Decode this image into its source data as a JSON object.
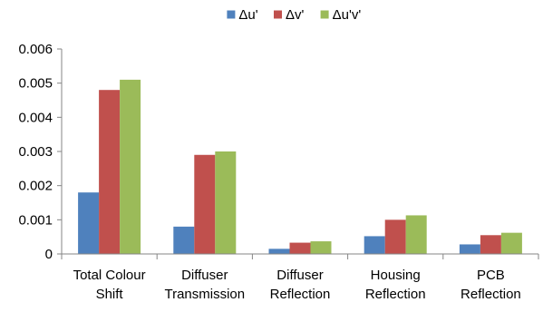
{
  "chart_data": {
    "type": "bar",
    "categories": [
      [
        "Total Colour",
        "Shift"
      ],
      [
        "Diffuser",
        "Transmission"
      ],
      [
        "Diffuser",
        "Reflection"
      ],
      [
        "Housing",
        "Reflection"
      ],
      [
        "PCB",
        "Reflection"
      ]
    ],
    "series": [
      {
        "name": "Δu'",
        "color": "#4F81BD",
        "values": [
          0.0018,
          0.0008,
          0.00015,
          0.00052,
          0.00028
        ]
      },
      {
        "name": "Δv'",
        "color": "#C0504D",
        "values": [
          0.0048,
          0.0029,
          0.00033,
          0.001,
          0.00055
        ]
      },
      {
        "name": "Δu'v'",
        "color": "#9BBB59",
        "values": [
          0.0051,
          0.003,
          0.00037,
          0.00113,
          0.00062
        ]
      }
    ],
    "y_ticks": [
      "0",
      "0.001",
      "0.002",
      "0.003",
      "0.004",
      "0.005",
      "0.006"
    ],
    "ylim": [
      0,
      0.006
    ],
    "grid": false,
    "legend_position": "top-center"
  }
}
